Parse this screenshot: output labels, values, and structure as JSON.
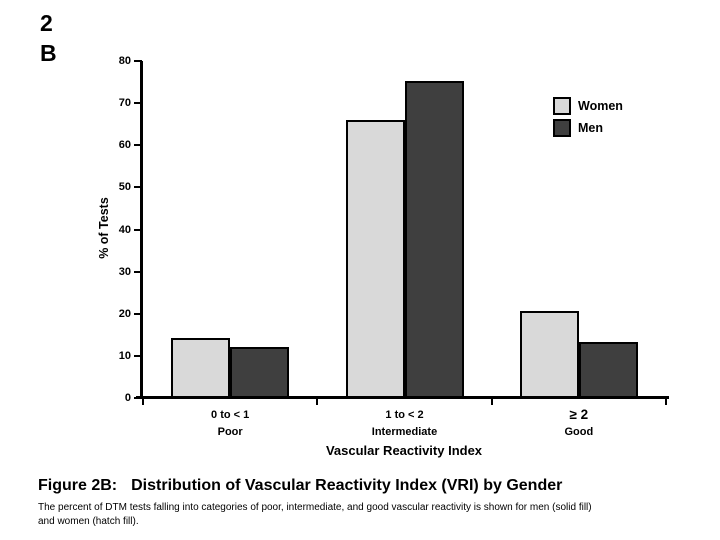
{
  "page": {
    "corner_label_line1": "2",
    "corner_label_line2": "B"
  },
  "chart_data": {
    "type": "bar",
    "title": "",
    "xlabel": "Vascular Reactivity Index",
    "ylabel": "% of Tests",
    "ylim": [
      0,
      80
    ],
    "ytick_step": 10,
    "grid": false,
    "legend_position": "top-right",
    "categories": [
      {
        "range": "0 to < 1",
        "quality": "Poor"
      },
      {
        "range": "1 to < 2",
        "quality": "Intermediate"
      },
      {
        "range": "≥ 2",
        "quality": "Good"
      }
    ],
    "series": [
      {
        "name": "Women",
        "color": "#d9d9d9",
        "values": [
          14.3,
          66.0,
          20.6
        ]
      },
      {
        "name": "Men",
        "color": "#3f3f3f",
        "values": [
          12.2,
          75.2,
          13.4
        ]
      }
    ]
  },
  "caption": {
    "figure_label": "Figure 2B:",
    "title": "Distribution of Vascular Reactivity Index (VRI) by Gender",
    "description_line1": "The percent of DTM tests falling into categories of poor, intermediate, and good vascular reactivity is shown for men (solid fill)",
    "description_line2": "and women (hatch fill)."
  }
}
